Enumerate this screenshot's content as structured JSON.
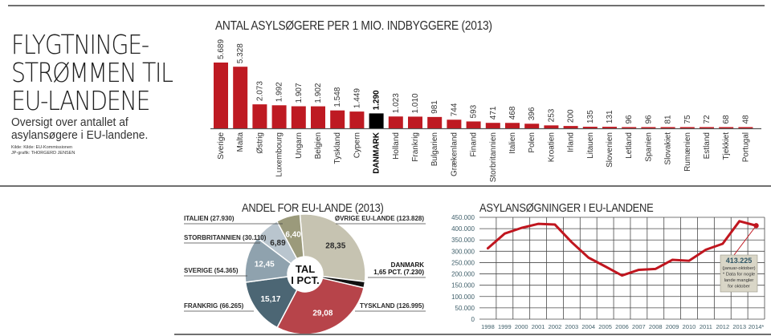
{
  "header": {
    "title_lines": [
      "FLYGTNINGE-",
      "STRØMMEN TIL",
      "EU-LANDENE"
    ],
    "subtitle_lines": [
      "Oversigt over antallet af",
      "asylansøgere i EU-landene."
    ],
    "source_lines": [
      "Kilde: Kilde: EU-Kommissionen",
      "JP-grafik: THORGERD JENSEN"
    ]
  },
  "colors": {
    "bar_red": "#be1a22",
    "bar_highlight": "#000000",
    "line_red": "#c0161f",
    "pie_ovrige": "#c6c3b1",
    "pie_danmark": "#111111",
    "pie_tyskland": "#b7444a",
    "pie_frankrig": "#4c6674",
    "pie_sverige": "#8fa2ae",
    "pie_storbritannien": "#b9c5ce",
    "pie_italien": "#9b9a7b",
    "annotation_bg": "#d9d6c7",
    "axis_text": "#3f5f6a"
  },
  "chart_data": [
    {
      "type": "bar",
      "title": "ANTAL ASYLSØGERE PER 1 MIO. INDBYGGERE (2013)",
      "xlabel": "",
      "ylabel": "",
      "highlight": "DANMARK",
      "categories": [
        "Sverige",
        "Malta",
        "Østrig",
        "Luxembourg",
        "Ungarn",
        "Belgien",
        "Tyskland",
        "Cypern",
        "DANMARK",
        "Holland",
        "Frankrig",
        "Bulgarien",
        "Grækenland",
        "Finand",
        "Storbritannien",
        "Italien",
        "Polen",
        "Kroatien",
        "Irland",
        "Litauen",
        "Slovenien",
        "Letland",
        "Spanien",
        "Slovakiet",
        "Rumænien",
        "Estland",
        "Tjekkiet",
        "Portugal"
      ],
      "values": [
        5689,
        5328,
        2073,
        1992,
        1907,
        1902,
        1548,
        1449,
        1290,
        1023,
        1010,
        981,
        744,
        593,
        471,
        468,
        396,
        253,
        200,
        135,
        131,
        96,
        96,
        81,
        75,
        72,
        68,
        48
      ],
      "value_labels": [
        "5.689",
        "5.328",
        "2.073",
        "1.992",
        "1.907",
        "1.902",
        "1.548",
        "1.449",
        "1.290",
        "1.023",
        "1.010",
        "981",
        "744",
        "593",
        "471",
        "468",
        "396",
        "253",
        "200",
        "135",
        "131",
        "96",
        "96",
        "81",
        "75",
        "72",
        "68",
        "48"
      ],
      "ylim": [
        0,
        5689
      ]
    },
    {
      "type": "pie",
      "title": "ANDEL FOR EU-LANDE (2013)",
      "center_label_lines": [
        "TAL",
        "I PCT."
      ],
      "slices": [
        {
          "name": "ØVRIGE EU-LANDE",
          "count": "123.828",
          "value": 28.35,
          "label": "28,35",
          "color_key": "pie_ovrige",
          "legend": "ØVRIGE EU-LANDE (123.828)"
        },
        {
          "name": "DANMARK",
          "count": "7.230",
          "value": 1.65,
          "label": "",
          "color_key": "pie_danmark",
          "legend_lines": [
            "DANMARK",
            "1,65 PCT. (7.230)"
          ]
        },
        {
          "name": "TYSKLAND",
          "count": "126.995",
          "value": 29.08,
          "label": "29,08",
          "color_key": "pie_tyskland",
          "legend": "TYSKLAND (126.995)"
        },
        {
          "name": "FRANKRIG",
          "count": "66.265",
          "value": 15.17,
          "label": "15,17",
          "color_key": "pie_frankrig",
          "legend": "FRANKRIG (66.265)"
        },
        {
          "name": "SVERIGE",
          "count": "54.365",
          "value": 12.45,
          "label": "12,45",
          "color_key": "pie_sverige",
          "legend": "SVERIGE (54.365)"
        },
        {
          "name": "STORBRITANNIEN",
          "count": "30.110",
          "value": 6.89,
          "label": "6,89",
          "color_key": "pie_storbritannien",
          "legend": "STORBRITANNIEN (30.110)"
        },
        {
          "name": "ITALIEN",
          "count": "27.930",
          "value": 6.4,
          "label": "6,40",
          "color_key": "pie_italien",
          "legend": "ITALIEN (27.930)"
        }
      ]
    },
    {
      "type": "line",
      "title": "ASYLANSØGNINGER I EU-LANDENE",
      "xlabel": "",
      "ylabel": "",
      "x": [
        "1998",
        "1999",
        "2000",
        "2001",
        "2002",
        "2003",
        "2004",
        "2005",
        "2006",
        "2007",
        "2008",
        "2009",
        "2010",
        "2011",
        "2012",
        "2013",
        "2014*"
      ],
      "series": [
        {
          "name": "Asylansøgninger",
          "values": [
            313000,
            378000,
            403000,
            421000,
            418000,
            340000,
            272000,
            233000,
            193000,
            218000,
            222000,
            262000,
            258000,
            307000,
            333000,
            433000,
            413225
          ]
        }
      ],
      "ylim": [
        0,
        450000
      ],
      "yticks": [
        0,
        50000,
        100000,
        150000,
        200000,
        250000,
        300000,
        350000,
        400000,
        450000
      ],
      "ytick_labels": [
        "0",
        "50.000",
        "100.000",
        "150.000",
        "200.000",
        "250.000",
        "300.000",
        "350.000",
        "400.000",
        "450.000"
      ],
      "grid": true,
      "annotation": {
        "target": "2014*",
        "value_label": "413.225",
        "lines": [
          "(januar-oktober)",
          "* Data for nogle",
          "lande mangler",
          "for oktober"
        ]
      }
    }
  ]
}
